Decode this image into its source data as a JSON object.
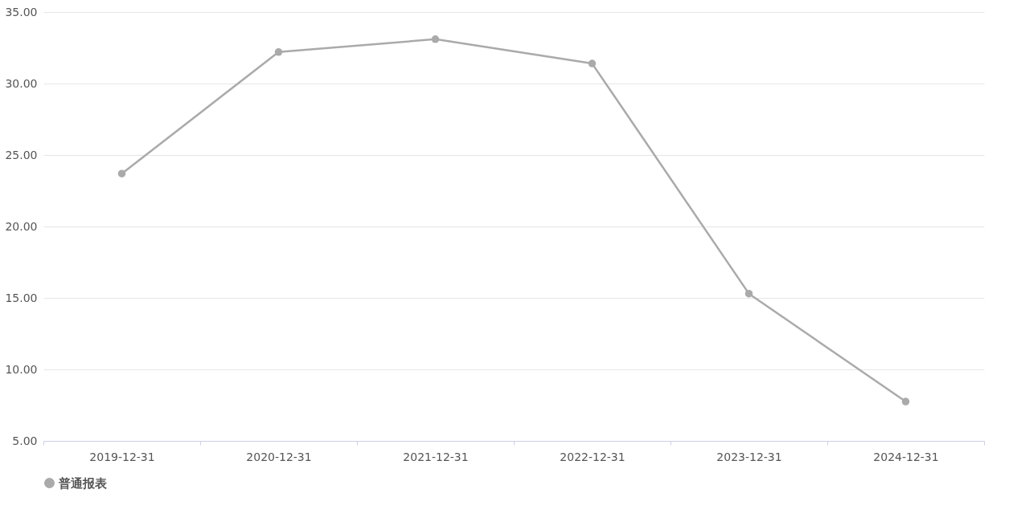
{
  "chart_data": {
    "type": "line",
    "categories": [
      "2019-12-31",
      "2020-12-31",
      "2021-12-31",
      "2022-12-31",
      "2023-12-31",
      "2024-12-31"
    ],
    "series": [
      {
        "name": "普通报表",
        "color": "#aaaaaa",
        "values": [
          23.7,
          32.2,
          33.1,
          31.4,
          15.3,
          7.75
        ]
      }
    ],
    "ylim": [
      5,
      35
    ],
    "yticks": [
      {
        "value": 5,
        "label": "5.00"
      },
      {
        "value": 10,
        "label": "10.00"
      },
      {
        "value": 15,
        "label": "15.00"
      },
      {
        "value": 20,
        "label": "20.00"
      },
      {
        "value": 25,
        "label": "25.00"
      },
      {
        "value": 30,
        "label": "30.00"
      },
      {
        "value": 35,
        "label": "35.00"
      }
    ],
    "grid": "y",
    "legend": "bottom",
    "marker": "circle",
    "line_style": "solid"
  }
}
